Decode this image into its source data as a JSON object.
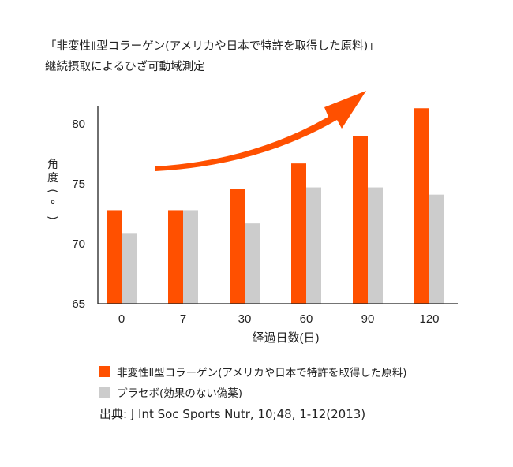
{
  "title": {
    "line1": "「非変性Ⅱ型コラーゲン(アメリカや日本で特許を取得した原料)」",
    "line2": "継続摂取によるひざ可動域測定"
  },
  "chart_data": {
    "type": "bar",
    "categories": [
      "0",
      "7",
      "30",
      "60",
      "90",
      "120"
    ],
    "series": [
      {
        "name": "非変性Ⅱ型コラーゲン(アメリカや日本で特許を取得した原料)",
        "color": "#ff5000",
        "values": [
          72.8,
          72.8,
          74.6,
          76.7,
          79.0,
          81.3
        ]
      },
      {
        "name": "プラセボ(効果のない偽薬)",
        "color": "#cccccc",
        "values": [
          70.9,
          72.8,
          71.7,
          74.7,
          74.7,
          74.1
        ]
      }
    ],
    "xlabel": "経過日数(日)",
    "ylabel": "角度(°)",
    "ylim": [
      65,
      82
    ],
    "yticks": [
      65,
      70,
      75,
      80
    ],
    "grid": false,
    "legend": "bottom",
    "annotation": "upward-trend-arrow"
  },
  "source": "出典: J Int Soc Sports Nutr, 10;48, 1-12(2013)"
}
